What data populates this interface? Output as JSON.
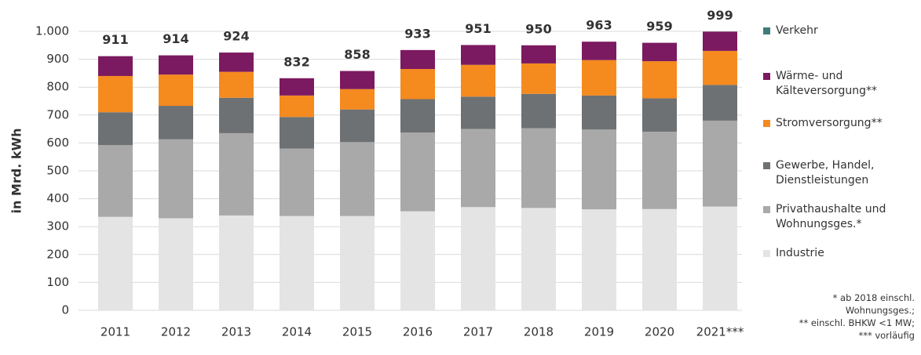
{
  "chart_data": {
    "type": "stacked_bar",
    "y_label": "in Mrd. kWh",
    "categories": [
      "2011",
      "2012",
      "2013",
      "2014",
      "2015",
      "2016",
      "2017",
      "2018",
      "2019",
      "2020",
      "2021***"
    ],
    "series": [
      {
        "name": "Industrie",
        "color": "#e4e4e4",
        "values": [
          335,
          330,
          340,
          338,
          338,
          355,
          370,
          367,
          362,
          363,
          372
        ]
      },
      {
        "name": "Privathaushalte und Wohnungsges.*",
        "color": "#a9a9a9",
        "values": [
          257,
          283,
          295,
          242,
          265,
          282,
          280,
          286,
          286,
          277,
          308
        ]
      },
      {
        "name": "Gewerbe, Handel, Dienstleistungen",
        "color": "#6d7174",
        "values": [
          118,
          120,
          127,
          113,
          117,
          120,
          116,
          123,
          122,
          120,
          128
        ]
      },
      {
        "name": "Stromversorgung**",
        "color": "#f58a1f",
        "values": [
          130,
          112,
          93,
          77,
          73,
          108,
          114,
          109,
          127,
          133,
          122
        ]
      },
      {
        "name": "Wärme- und Kälteversorgung**",
        "color": "#7b1a60",
        "values": [
          71,
          69,
          69,
          62,
          65,
          68,
          71,
          65,
          66,
          66,
          69
        ]
      },
      {
        "name": "Verkehr",
        "color": "#3e7d79",
        "values": [
          0,
          0,
          0,
          0,
          0,
          0,
          0,
          0,
          0,
          0,
          0
        ]
      }
    ],
    "totals": [
      911,
      914,
      924,
      832,
      858,
      933,
      951,
      950,
      963,
      959,
      999
    ],
    "ylim": [
      0,
      1000
    ],
    "yticks": [
      0,
      100,
      200,
      300,
      400,
      500,
      600,
      700,
      800,
      900,
      {
        "value": 1000,
        "label": "1.000"
      }
    ],
    "grid": true,
    "notes": [
      "* ab 2018 einschl. Wohnungsges.;",
      "** einschl. BHKW <1 MW;",
      "*** vorläufig"
    ]
  }
}
